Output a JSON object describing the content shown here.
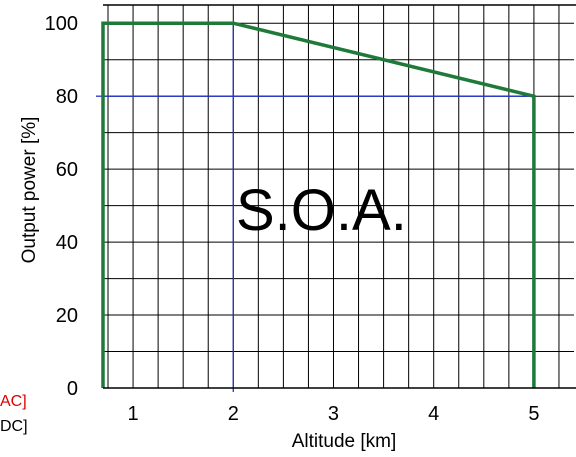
{
  "chart_data": {
    "type": "line",
    "xlabel": "Altitude [km]",
    "ylabel": "Output power [%]",
    "x_ticks": [
      "1",
      "2",
      "3",
      "4",
      "5"
    ],
    "y_ticks": [
      "0",
      "20",
      "40",
      "60",
      "80",
      "100"
    ],
    "xlim": [
      0.7,
      5.4
    ],
    "ylim": [
      0,
      105
    ],
    "grid": true,
    "region_label": "S.O.A.",
    "series": [
      {
        "color": "#1f7a3a",
        "points": [
          {
            "x": 0.7,
            "y": 0
          },
          {
            "x": 0.7,
            "y": 100
          },
          {
            "x": 2,
            "y": 100
          },
          {
            "x": 5,
            "y": 80
          },
          {
            "x": 5,
            "y": 0
          }
        ]
      }
    ],
    "reference_lines": [
      {
        "color": "#2233cc",
        "from": {
          "x": 2,
          "y": 100
        },
        "to": {
          "x": 2,
          "y": 0
        }
      },
      {
        "color": "#2233cc",
        "from": {
          "x": 0.7,
          "y": 80
        },
        "to": {
          "x": 5,
          "y": 80
        }
      }
    ],
    "cut_off_labels": [
      {
        "text": "AC]",
        "color": "#dd0000"
      },
      {
        "text": "DC]",
        "color": "#000000"
      }
    ]
  }
}
